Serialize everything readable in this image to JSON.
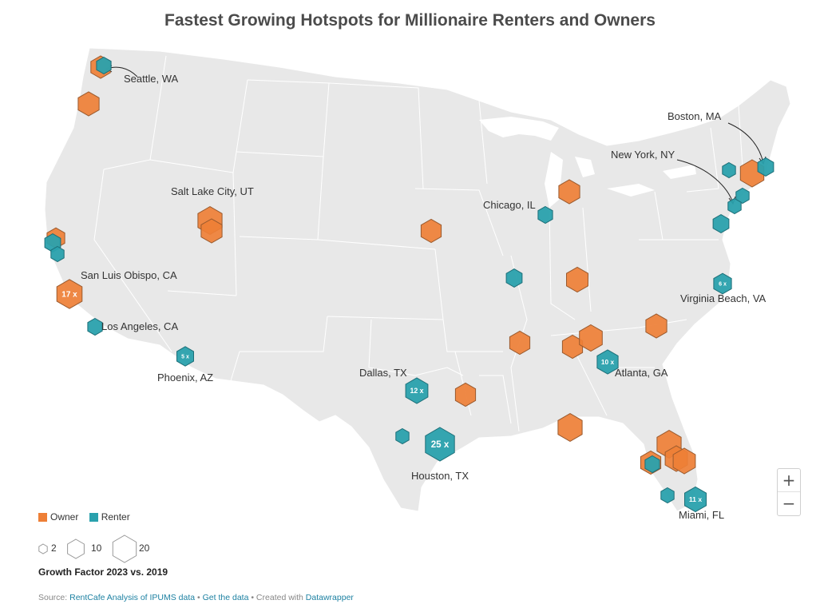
{
  "title": "Fastest Growing Hotspots for Millionaire Renters and Owners",
  "colors": {
    "owner": "#ee7f36",
    "renter": "#2aa1ad",
    "land": "#e8e8e8",
    "owner_stroke": "#9a5a2e",
    "renter_stroke": "#1d6f78"
  },
  "legend": {
    "categories": [
      {
        "label": "Owner",
        "color": "#ee7f36"
      },
      {
        "label": "Renter",
        "color": "#2aa1ad"
      }
    ],
    "size_steps": [
      {
        "label": "2",
        "value": 2
      },
      {
        "label": "10",
        "value": 10
      },
      {
        "label": "20",
        "value": 20
      }
    ],
    "size_title": "Growth Factor 2023 vs. 2019"
  },
  "zoom": {
    "in_label": "+",
    "out_label": "−"
  },
  "source": {
    "prefix": "Source: ",
    "link1": "RentCafe Analysis of IPUMS data",
    "sep1": " • ",
    "link2": "Get the data",
    "sep2": " • Created with ",
    "link3": "Datawrapper"
  },
  "labels": [
    {
      "text": "Seattle, WA"
    },
    {
      "text": "Salt Lake City, UT"
    },
    {
      "text": "San Luis Obispo, CA"
    },
    {
      "text": "Los Angeles, CA"
    },
    {
      "text": "Phoenix, AZ"
    },
    {
      "text": "Dallas, TX"
    },
    {
      "text": "Houston, TX"
    },
    {
      "text": "Chicago, IL"
    },
    {
      "text": "Atlanta, GA"
    },
    {
      "text": "Miami, FL"
    },
    {
      "text": "Virginia Beach, VA"
    },
    {
      "text": "New York, NY"
    },
    {
      "text": "Boston, MA"
    }
  ],
  "markers": [
    {
      "type": "owner",
      "value": 8
    },
    {
      "type": "renter",
      "value": 3
    },
    {
      "type": "owner",
      "value": 10
    },
    {
      "type": "owner",
      "value": 6
    },
    {
      "type": "renter",
      "value": 4
    },
    {
      "type": "renter",
      "value": 2
    },
    {
      "type": "owner",
      "value": 17,
      "label": "17 x"
    },
    {
      "type": "renter",
      "value": 3
    },
    {
      "type": "renter",
      "value": 5,
      "label": "5 x"
    },
    {
      "type": "owner",
      "value": 15
    },
    {
      "type": "owner",
      "value": 10
    },
    {
      "type": "renter",
      "value": 12,
      "label": "12 x"
    },
    {
      "type": "renter",
      "value": 25,
      "label": "25 x"
    },
    {
      "type": "renter",
      "value": 2
    },
    {
      "type": "owner",
      "value": 9
    },
    {
      "type": "owner",
      "value": 10
    },
    {
      "type": "renter",
      "value": 3
    },
    {
      "type": "owner",
      "value": 11
    },
    {
      "type": "renter",
      "value": 4
    },
    {
      "type": "owner",
      "value": 9
    },
    {
      "type": "owner",
      "value": 9
    },
    {
      "type": "owner",
      "value": 9
    },
    {
      "type": "owner",
      "value": 13
    },
    {
      "type": "renter",
      "value": 10,
      "label": "10 x"
    },
    {
      "type": "owner",
      "value": 10
    },
    {
      "type": "owner",
      "value": 15
    },
    {
      "type": "owner",
      "value": 15
    },
    {
      "type": "owner",
      "value": 12
    },
    {
      "type": "owner",
      "value": 12
    },
    {
      "type": "owner",
      "value": 9
    },
    {
      "type": "renter",
      "value": 3
    },
    {
      "type": "renter",
      "value": 11,
      "label": "11 x"
    },
    {
      "type": "renter",
      "value": 2
    },
    {
      "type": "renter",
      "value": 6,
      "label": "6 x"
    },
    {
      "type": "renter",
      "value": 4
    },
    {
      "type": "renter",
      "value": 2
    },
    {
      "type": "renter",
      "value": 2
    },
    {
      "type": "owner",
      "value": 14
    },
    {
      "type": "renter",
      "value": 4
    },
    {
      "type": "renter",
      "value": 2
    }
  ]
}
